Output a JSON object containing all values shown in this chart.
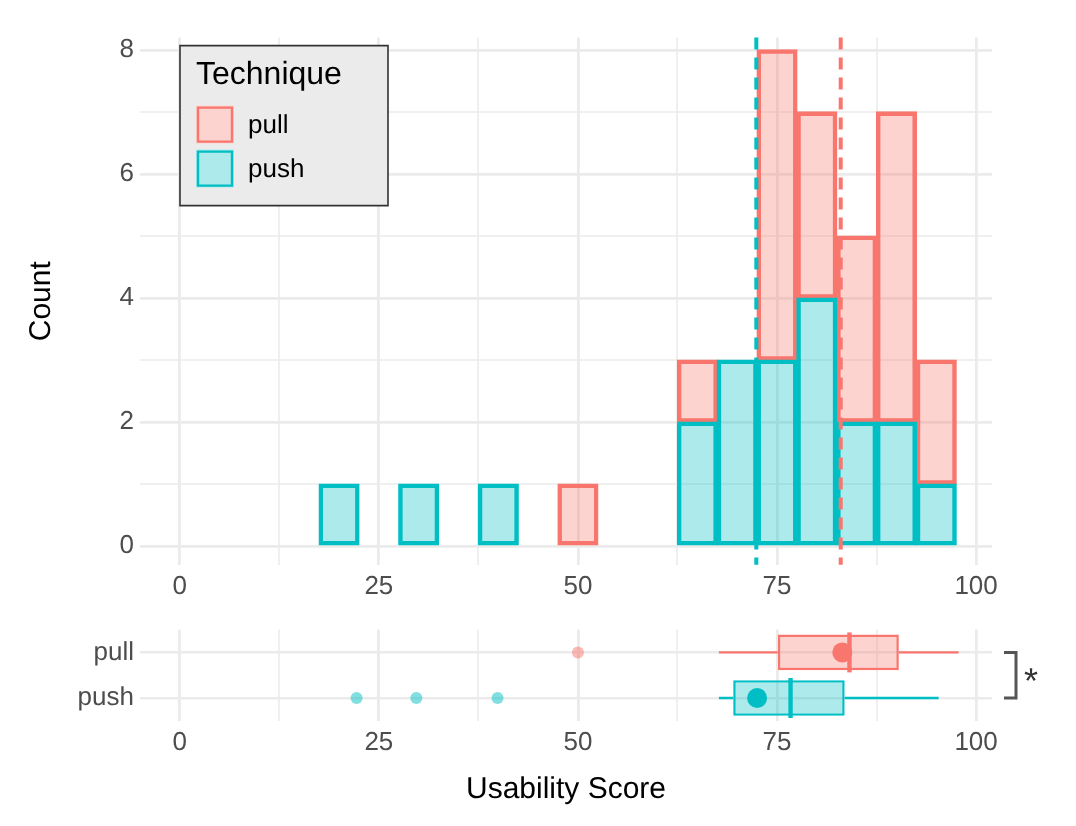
{
  "chart_data": [
    {
      "type": "bar",
      "ylabel": "Count",
      "legend_title": "Technique",
      "legend": "top left",
      "stacked": true,
      "grid": true,
      "x": [
        20,
        25,
        30,
        35,
        40,
        45,
        50,
        55,
        60,
        65,
        70,
        75,
        80,
        85,
        90,
        95
      ],
      "series": [
        {
          "name": "push",
          "color": "#00bfc4",
          "values": [
            1,
            0,
            1,
            0,
            1,
            0,
            0,
            0,
            0,
            2,
            3,
            3,
            4,
            2,
            2,
            1
          ]
        },
        {
          "name": "pull",
          "color": "#f8766d",
          "values": [
            0,
            0,
            0,
            0,
            0,
            0,
            1,
            0,
            0,
            1,
            0,
            5,
            3,
            3,
            5,
            2
          ]
        }
      ],
      "xlim": [
        -5,
        102
      ],
      "ylim": [
        -0.3,
        8.2
      ],
      "xticks": [
        0,
        {
          "value": 12.5,
          "label": null
        },
        25,
        {
          "value": 37.5,
          "label": null
        },
        50,
        {
          "value": 62.5,
          "label": null
        },
        75,
        {
          "value": 87.5,
          "label": null
        },
        100
      ],
      "yticks": [
        0,
        {
          "value": 1,
          "label": null
        },
        2,
        {
          "value": 3,
          "label": null
        },
        4,
        {
          "value": 5,
          "label": null
        },
        6,
        {
          "value": 7,
          "label": null
        },
        8
      ],
      "ref_lines": [
        {
          "axis": "x",
          "value": 72.4,
          "color": "#00bfc4",
          "line_style": "dashed"
        },
        {
          "axis": "x",
          "value": 83.0,
          "color": "#f8766d",
          "line_style": "dashed"
        }
      ]
    },
    {
      "type": "box",
      "orientation": "horizontal",
      "xlabel": "Usability Score",
      "grid": true,
      "categories": [
        "pull",
        "push"
      ],
      "colors": [
        "#f8766d",
        "#00bfc4"
      ],
      "boxes": [
        {
          "low": 67.7,
          "q1": 75.1,
          "median": 84.1,
          "q3": 90.3,
          "high": 97.8,
          "mean": 83.2,
          "outliers": [
            50
          ]
        },
        {
          "low": 67.7,
          "q1": 69.5,
          "median": 76.7,
          "q3": 83.5,
          "high": 95.3,
          "mean": 72.5,
          "outliers": [
            22.2,
            29.7,
            39.9
          ]
        }
      ],
      "xlim": [
        -5,
        102
      ],
      "xticks": [
        0,
        {
          "value": 12.5,
          "label": null
        },
        25,
        {
          "value": 37.5,
          "label": null
        },
        50,
        {
          "value": 62.5,
          "label": null
        },
        75,
        {
          "value": 87.5,
          "label": null
        },
        100
      ],
      "annotations": [
        "*"
      ]
    }
  ]
}
